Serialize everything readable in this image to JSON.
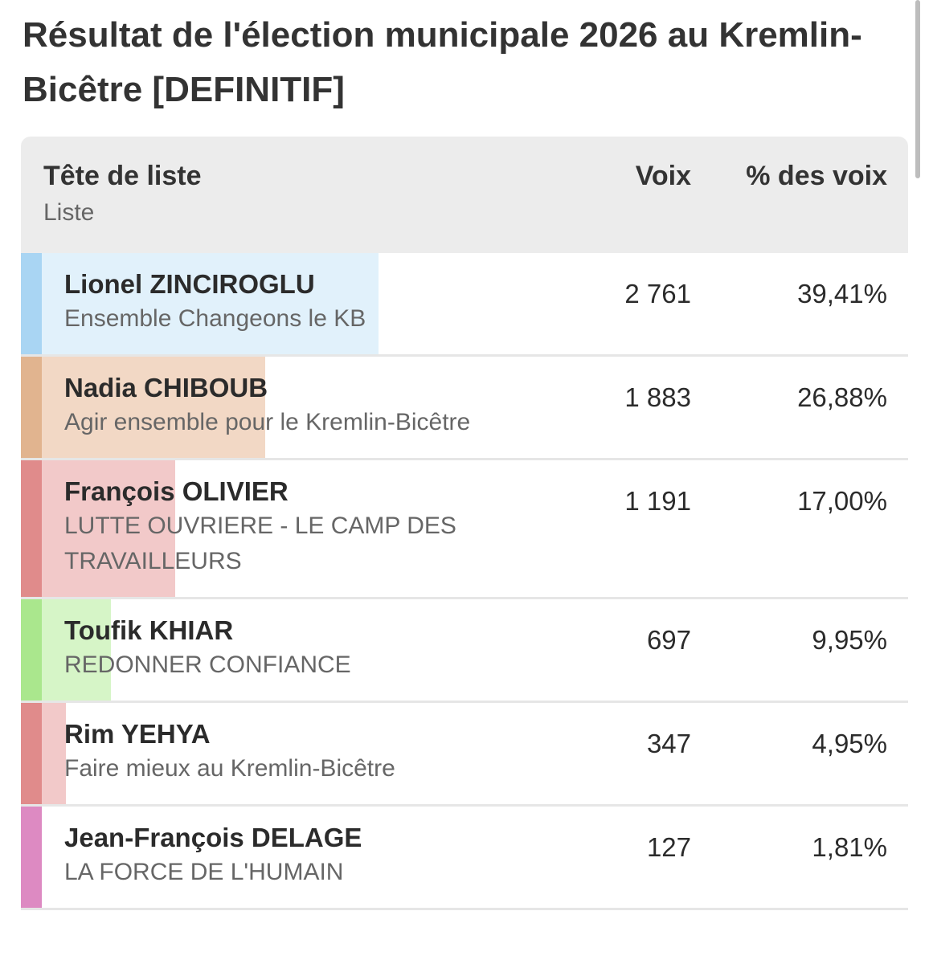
{
  "header": {
    "title": "Résultat de l'élection municipale 2026 au Kremlin-Bicêtre [DEFINITIF]"
  },
  "table": {
    "columns": {
      "candidate": "Tête de liste",
      "list": "Liste",
      "votes": "Voix",
      "share": "% des voix"
    },
    "rows": [
      {
        "name": "Lionel ZINCIROGLU",
        "list": "Ensemble Changeons le KB",
        "votes": "2 761",
        "share": {
          "value": 39.41,
          "label": "39,41%"
        },
        "color": "#a9d5f3",
        "bar_color": "#e1f1fb"
      },
      {
        "name": "Nadia CHIBOUB",
        "list": "Agir ensemble pour le Kremlin-Bicêtre",
        "votes": "1 883",
        "share": {
          "value": 26.88,
          "label": "26,88%"
        },
        "color": "#e1b48f",
        "bar_color": "#f2d8c5"
      },
      {
        "name": "François OLIVIER",
        "list": "LUTTE OUVRIERE - LE CAMP DES TRAVAILLEURS",
        "votes": "1 191",
        "share": {
          "value": 17.0,
          "label": "17,00%"
        },
        "color": "#e08b8b",
        "bar_color": "#f2c9c9"
      },
      {
        "name": "Toufik KHIAR",
        "list": "REDONNER CONFIANCE",
        "votes": "697",
        "share": {
          "value": 9.95,
          "label": "9,95%"
        },
        "color": "#aae78d",
        "bar_color": "#d6f5c7"
      },
      {
        "name": "Rim YEHYA",
        "list": "Faire mieux au Kremlin-Bicêtre",
        "votes": "347",
        "share": {
          "value": 4.95,
          "label": "4,95%"
        },
        "color": "#e08b8b",
        "bar_color": "#f2c9c9"
      },
      {
        "name": "Jean-François DELAGE",
        "list": "LA FORCE DE L'HUMAIN",
        "votes": "127",
        "share": {
          "value": 1.81,
          "label": "1,81%"
        },
        "color": "#dd8ac2",
        "bar_color": "#efc6e3"
      }
    ]
  }
}
